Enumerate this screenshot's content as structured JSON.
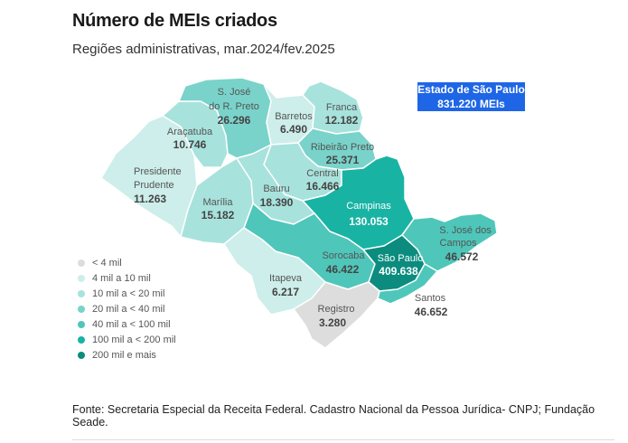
{
  "title": "Número de MEIs criados",
  "subtitle": "Regiões administrativas, mar.2024/fev.2025",
  "state_box": {
    "line1": "Estado de São Paulo",
    "line2": "831.220 MEIs",
    "color": "#1f66e6"
  },
  "regions": {
    "sjrp": {
      "name1": "S. José",
      "name2": "do R. Preto",
      "value": "26.296"
    },
    "barretos": {
      "name": "Barretos",
      "value": "6.490"
    },
    "franca": {
      "name": "Franca",
      "value": "12.182"
    },
    "aracatuba": {
      "name": "Araçatuba",
      "value": "10.746"
    },
    "rpreto": {
      "name": "Ribeirão Preto",
      "value": "25.371"
    },
    "central": {
      "name": "Central",
      "value": "16.466"
    },
    "pprudente": {
      "name1": "Presidente",
      "name2": "Prudente",
      "value": "11.263"
    },
    "bauru": {
      "name": "Bauru",
      "value": "18.390"
    },
    "marilia": {
      "name": "Marília",
      "value": "15.182"
    },
    "campinas": {
      "name": "Campinas",
      "value": "130.053"
    },
    "sjcampos": {
      "name1": "S. José dos",
      "name2": "Campos",
      "value": "46.572"
    },
    "sorocaba": {
      "name": "Sorocaba",
      "value": "46.422"
    },
    "saopaulo": {
      "name": "São Paulo",
      "value": "409.638"
    },
    "itapeva": {
      "name": "Itapeva",
      "value": "6.217"
    },
    "santos": {
      "name": "Santos",
      "value": "46.652"
    },
    "registro": {
      "name": "Registro",
      "value": "3.280"
    }
  },
  "legend": [
    {
      "label": "< 4 mil",
      "color": "#dddddd"
    },
    {
      "label": "4 mil a 10 mil",
      "color": "#cdeeea"
    },
    {
      "label": "10 mil a < 20 mil",
      "color": "#a8e2dc"
    },
    {
      "label": "20 mil a < 40 mil",
      "color": "#79d3ca"
    },
    {
      "label": "40 mil a < 100 mil",
      "color": "#4fc6ba"
    },
    {
      "label": "100 mil a < 200 mil",
      "color": "#19b3a4"
    },
    {
      "label": "200 mil e mais",
      "color": "#0b8c7e"
    }
  ],
  "source": "Fonte: Secretaria Especial da Receita Federal. Cadastro Nacional da Pessoa Jurídica- CNPJ; Fundação Seade."
}
